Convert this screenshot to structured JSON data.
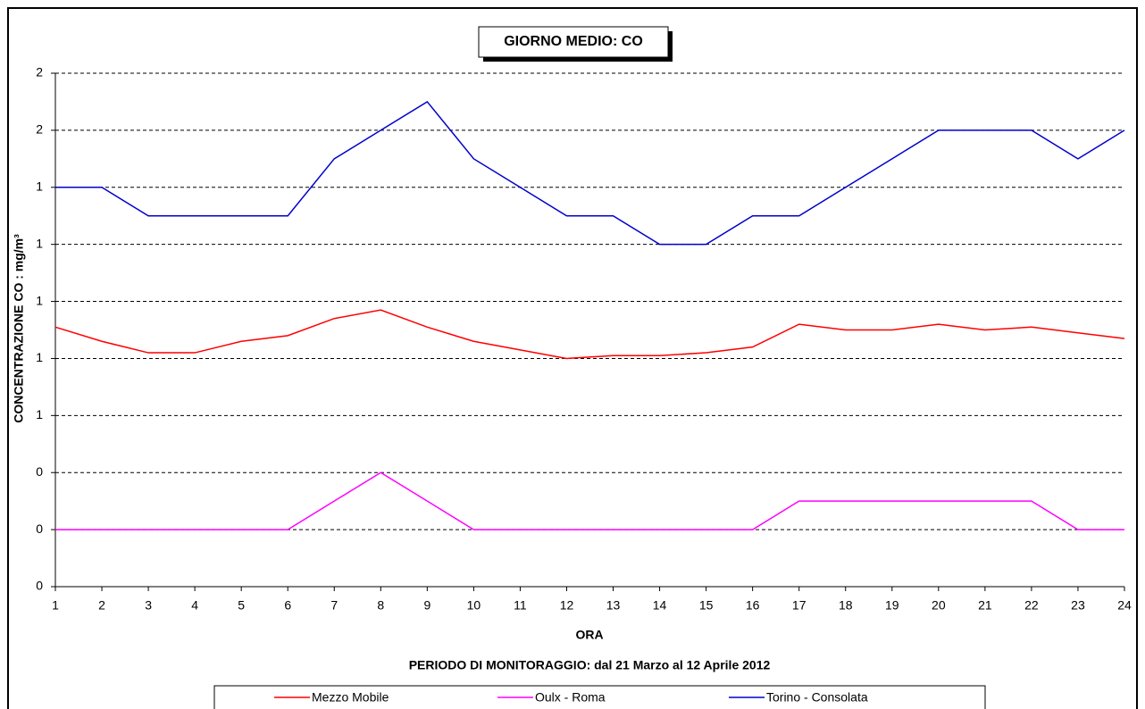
{
  "chart_data": {
    "type": "line",
    "title": "GIORNO MEDIO: CO",
    "x_label": "ORA",
    "y_label": "CONCENTRAZIONE CO :  mg/m³",
    "subtitle": "PERIODO DI MONITORAGGIO: dal 21 Marzo al 12 Aprile 2012",
    "x": [
      1,
      2,
      3,
      4,
      5,
      6,
      7,
      8,
      9,
      10,
      11,
      12,
      13,
      14,
      15,
      16,
      17,
      18,
      19,
      20,
      21,
      22,
      23,
      24
    ],
    "xlim": [
      1,
      24
    ],
    "ylim": [
      0,
      1.8
    ],
    "yticks": [
      0,
      {
        "value": 0.2,
        "label": "0"
      },
      {
        "value": 0.4,
        "label": "0"
      },
      {
        "value": 0.6,
        "label": "1"
      },
      {
        "value": 0.8,
        "label": "1"
      },
      1,
      {
        "value": 1.2,
        "label": "1"
      },
      {
        "value": 1.4,
        "label": "1"
      },
      {
        "value": 1.6,
        "label": "2"
      },
      {
        "value": 1.8,
        "label": "2"
      }
    ],
    "grid": true,
    "legend": "bottom",
    "series": [
      {
        "name": "Mezzo Mobile",
        "color": "#ff0000",
        "values": [
          0.91,
          0.86,
          0.82,
          0.82,
          0.86,
          0.88,
          0.94,
          0.97,
          0.91,
          0.86,
          0.83,
          0.8,
          0.81,
          0.81,
          0.82,
          0.84,
          0.92,
          0.9,
          0.9,
          0.92,
          0.9,
          0.91,
          0.89,
          0.87
        ]
      },
      {
        "name": "Oulx - Roma",
        "color": "#ff00ff",
        "values": [
          0.2,
          0.2,
          0.2,
          0.2,
          0.2,
          0.2,
          0.3,
          0.4,
          0.3,
          0.2,
          0.2,
          0.2,
          0.2,
          0.2,
          0.2,
          0.2,
          0.3,
          0.3,
          0.3,
          0.3,
          0.3,
          0.3,
          0.2,
          0.2
        ]
      },
      {
        "name": "Torino - Consolata",
        "color": "#0000cc",
        "values": [
          1.4,
          1.4,
          1.3,
          1.3,
          1.3,
          1.3,
          1.5,
          1.6,
          1.7,
          1.5,
          1.4,
          1.3,
          1.3,
          1.2,
          1.2,
          1.3,
          1.3,
          1.4,
          1.5,
          1.6,
          1.6,
          1.6,
          1.5,
          1.6
        ]
      }
    ]
  }
}
